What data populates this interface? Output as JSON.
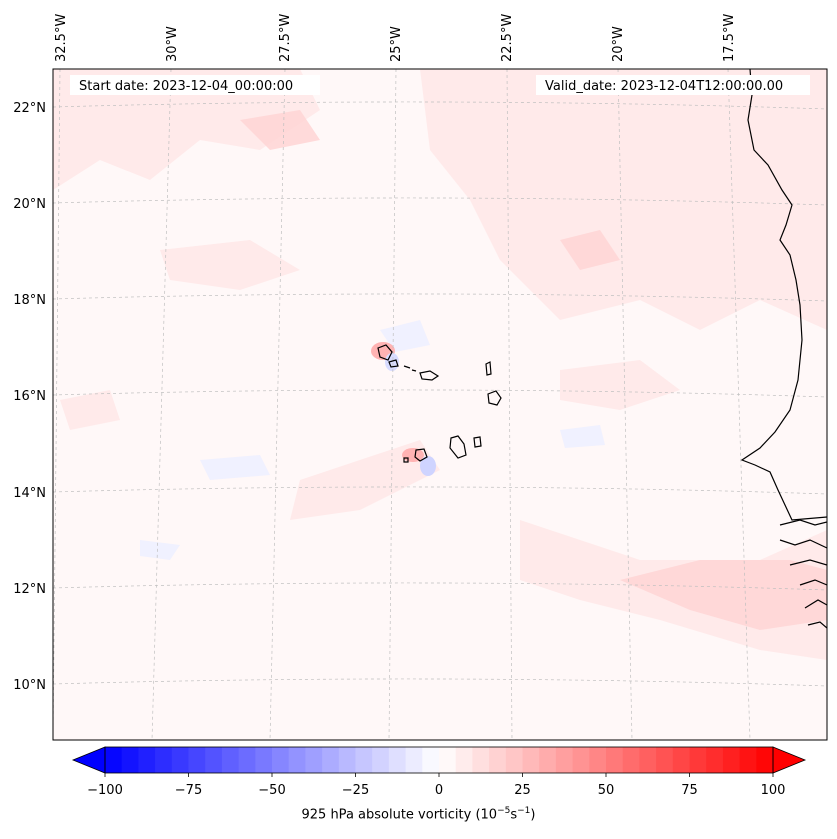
{
  "map": {
    "start_label": "Start date: 2023-12-04_00:00:00",
    "valid_label": "Valid_date: 2023-12-04T12:00:00.00",
    "lon_ticks": [
      "32.5°W",
      "30°W",
      "27.5°W",
      "25°W",
      "22.5°W",
      "20°W",
      "17.5°W"
    ],
    "lat_ticks": [
      "22°N",
      "20°N",
      "18°N",
      "16°N",
      "14°N",
      "12°N",
      "10°N"
    ]
  },
  "colorbar": {
    "ticks": [
      "−100",
      "−75",
      "−50",
      "−25",
      "0",
      "25",
      "50",
      "75",
      "100"
    ],
    "values": [
      -100,
      -75,
      -50,
      -25,
      0,
      25,
      50,
      75,
      100
    ],
    "range": [
      -100,
      100
    ],
    "label_prefix": "925 hPa absolute vorticity (10",
    "label_exp1": "−5",
    "label_mid": "s",
    "label_exp2": "−1",
    "label_suffix": ")"
  },
  "colors": {
    "negative": "#0000ff",
    "zero": "#ffffff",
    "positive": "#ff0000"
  }
}
